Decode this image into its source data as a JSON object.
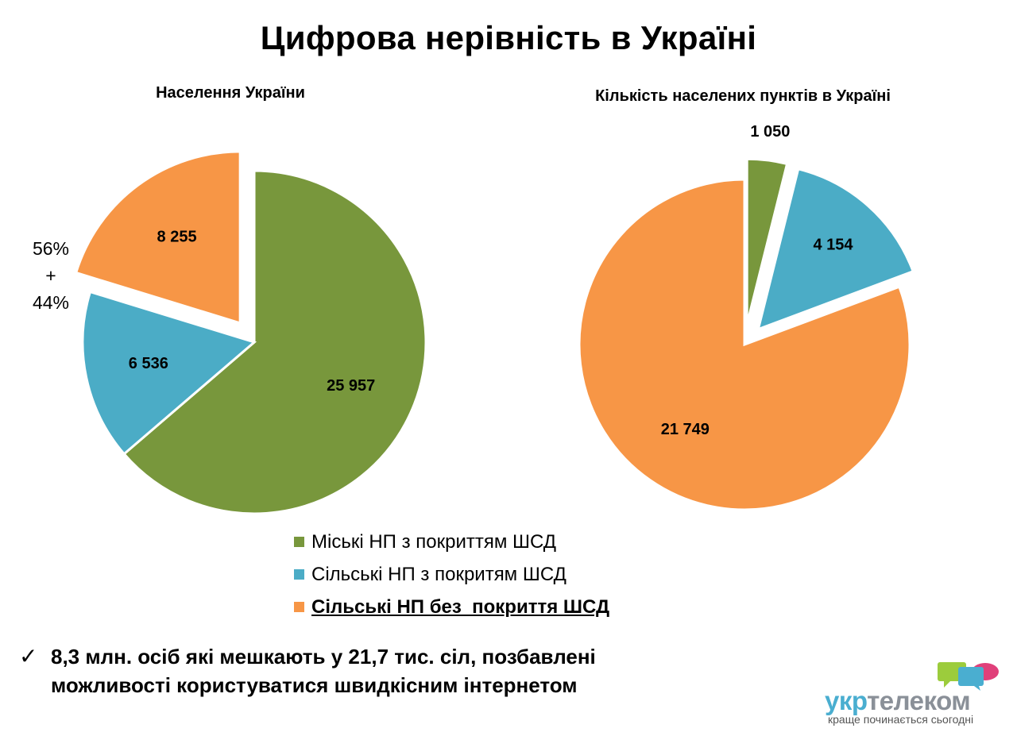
{
  "title": "Цифрова нерівність в Україні",
  "colors": {
    "green": "#78973c",
    "blue": "#4bacc6",
    "orange": "#f79646"
  },
  "chart_data": [
    {
      "type": "pie",
      "title": "Населення України",
      "slices": [
        {
          "category": "Міські НП з покриттям ШСД",
          "value": 25957,
          "label": "25 957",
          "color": "#78973c",
          "exploded": false
        },
        {
          "category": "Сільські НП з покритям ШСД",
          "value": 6536,
          "label": "6 536",
          "color": "#4bacc6",
          "exploded": false
        },
        {
          "category": "Сільські НП без  покриття ШСД",
          "value": 8255,
          "label": "8 255",
          "color": "#f79646",
          "exploded": true
        }
      ],
      "annotation": [
        "56%",
        "+",
        "44%"
      ]
    },
    {
      "type": "pie",
      "title": "Кількість населених пунктів в Україні",
      "slices": [
        {
          "category": "Міські НП з покриттям ШСД",
          "value": 1050,
          "label": "1 050",
          "color": "#78973c",
          "exploded": true
        },
        {
          "category": "Сільські НП з покритям ШСД",
          "value": 4154,
          "label": "4 154",
          "color": "#4bacc6",
          "exploded": true
        },
        {
          "category": "Сільські НП без  покриття ШСД",
          "value": 21749,
          "label": "21 749",
          "color": "#f79646",
          "exploded": false
        }
      ]
    }
  ],
  "legend": [
    {
      "label": "Міські НП з покриттям ШСД",
      "color": "#78973c",
      "emphasized": false
    },
    {
      "label": "Сільські НП з покритям ШСД",
      "color": "#4bacc6",
      "emphasized": false
    },
    {
      "label": "Сільські НП без  покриття ШСД",
      "color": "#f79646",
      "emphasized": true
    }
  ],
  "conclusion": {
    "icon": "checkmark-icon",
    "text": "8,3 млн. осіб які мешкають у 21,7 тис. сіл, позбавлені можливості користуватися швидкісним інтернетом"
  },
  "brand": {
    "name_part1": "укр",
    "name_part2": "телеком",
    "slogan": "краще починається сьогодні",
    "icon": "speech-bubbles-logo-icon"
  }
}
